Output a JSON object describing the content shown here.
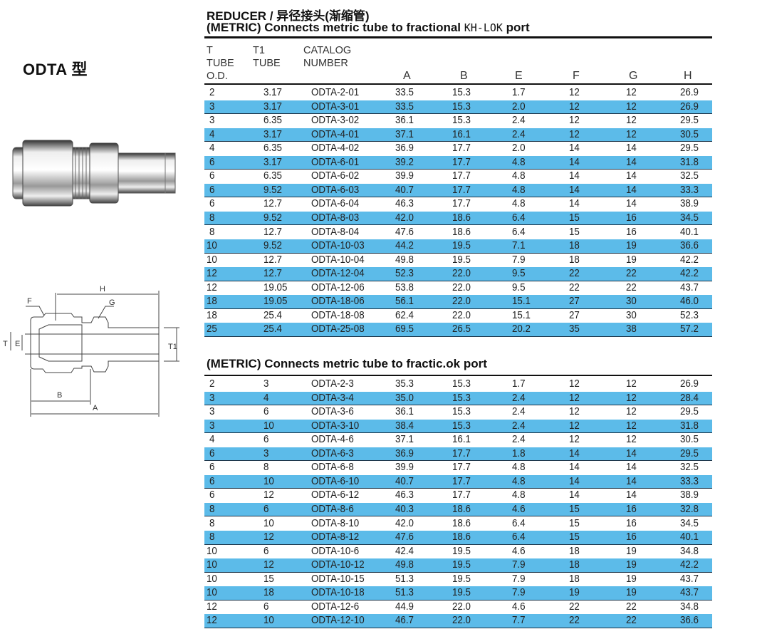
{
  "model_label": "ODTA 型",
  "header": {
    "title_line1": "REDUCER /  异径接头(渐缩管)",
    "title_line2_a": "(METRIC) Connects metric tube to fractional ",
    "title_line2_b": "KH-LOK",
    "title_line2_c": " port",
    "section2_title": "(METRIC) Connects metric tube to fractic.ok port"
  },
  "columns": {
    "t": [
      "T",
      "TUBE",
      "O.D."
    ],
    "t1": [
      "T1",
      "TUBE"
    ],
    "catalog": [
      "CATALOG",
      "NUMBER"
    ],
    "dims": [
      "A",
      "B",
      "E",
      "F",
      "G",
      "H"
    ]
  },
  "diagram_labels": {
    "H": "H",
    "F": "F",
    "G": "G",
    "T": "T",
    "E": "E",
    "T1": "T1",
    "B": "B",
    "A": "A"
  },
  "colors": {
    "row_highlight": "#5cbbe9",
    "rule": "#111111"
  },
  "table1": [
    [
      "2",
      "3.17",
      "ODTA-2-01",
      "33.5",
      "15.3",
      "1.7",
      "12",
      "12",
      "26.9"
    ],
    [
      "3",
      "3.17",
      "ODTA-3-01",
      "33.5",
      "15.3",
      "2.0",
      "12",
      "12",
      "26.9"
    ],
    [
      "3",
      "6.35",
      "ODTA-3-02",
      "36.1",
      "15.3",
      "2.4",
      "12",
      "12",
      "29.5"
    ],
    [
      "4",
      "3.17",
      "ODTA-4-01",
      "37.1",
      "16.1",
      "2.4",
      "12",
      "12",
      "30.5"
    ],
    [
      "4",
      "6.35",
      "ODTA-4-02",
      "36.9",
      "17.7",
      "2.0",
      "14",
      "14",
      "29.5"
    ],
    [
      "6",
      "3.17",
      "ODTA-6-01",
      "39.2",
      "17.7",
      "4.8",
      "14",
      "14",
      "31.8"
    ],
    [
      "6",
      "6.35",
      "ODTA-6-02",
      "39.9",
      "17.7",
      "4.8",
      "14",
      "14",
      "32.5"
    ],
    [
      "6",
      "9.52",
      "ODTA-6-03",
      "40.7",
      "17.7",
      "4.8",
      "14",
      "14",
      "33.3"
    ],
    [
      "6",
      "12.7",
      "ODTA-6-04",
      "46.3",
      "17.7",
      "4.8",
      "14",
      "14",
      "38.9"
    ],
    [
      "8",
      "9.52",
      "ODTA-8-03",
      "42.0",
      "18.6",
      "6.4",
      "15",
      "16",
      "34.5"
    ],
    [
      "8",
      "12.7",
      "ODTA-8-04",
      "47.6",
      "18.6",
      "6.4",
      "15",
      "16",
      "40.1"
    ],
    [
      "10",
      "9.52",
      "ODTA-10-03",
      "44.2",
      "19.5",
      "7.1",
      "18",
      "19",
      "36.6"
    ],
    [
      "10",
      "12.7",
      "ODTA-10-04",
      "49.8",
      "19.5",
      "7.9",
      "18",
      "19",
      "42.2"
    ],
    [
      "12",
      "12.7",
      "ODTA-12-04",
      "52.3",
      "22.0",
      "9.5",
      "22",
      "22",
      "42.2"
    ],
    [
      "12",
      "19.05",
      "ODTA-12-06",
      "53.8",
      "22.0",
      "9.5",
      "22",
      "22",
      "43.7"
    ],
    [
      "18",
      "19.05",
      "ODTA-18-06",
      "56.1",
      "22.0",
      "15.1",
      "27",
      "30",
      "46.0"
    ],
    [
      "18",
      "25.4",
      "ODTA-18-08",
      "62.4",
      "22.0",
      "15.1",
      "27",
      "30",
      "52.3"
    ],
    [
      "25",
      "25.4",
      "ODTA-25-08",
      "69.5",
      "26.5",
      "20.2",
      "35",
      "38",
      "57.2"
    ]
  ],
  "table2": [
    [
      "2",
      "3",
      "ODTA-2-3",
      "35.3",
      "15.3",
      "1.7",
      "12",
      "12",
      "26.9"
    ],
    [
      "3",
      "4",
      "ODTA-3-4",
      "35.0",
      "15.3",
      "2.4",
      "12",
      "12",
      "28.4"
    ],
    [
      "3",
      "6",
      "ODTA-3-6",
      "36.1",
      "15.3",
      "2.4",
      "12",
      "12",
      "29.5"
    ],
    [
      "3",
      "10",
      "ODTA-3-10",
      "38.4",
      "15.3",
      "2.4",
      "12",
      "12",
      "31.8"
    ],
    [
      "4",
      "6",
      "ODTA-4-6",
      "37.1",
      "16.1",
      "2.4",
      "12",
      "12",
      "30.5"
    ],
    [
      "6",
      "3",
      "ODTA-6-3",
      "36.9",
      "17.7",
      "1.8",
      "14",
      "14",
      "29.5"
    ],
    [
      "6",
      "8",
      "ODTA-6-8",
      "39.9",
      "17.7",
      "4.8",
      "14",
      "14",
      "32.5"
    ],
    [
      "6",
      "10",
      "ODTA-6-10",
      "40.7",
      "17.7",
      "4.8",
      "14",
      "14",
      "33.3"
    ],
    [
      "6",
      "12",
      "ODTA-6-12",
      "46.3",
      "17.7",
      "4.8",
      "14",
      "14",
      "38.9"
    ],
    [
      "8",
      "6",
      "ODTA-8-6",
      "40.3",
      "18.6",
      "4.6",
      "15",
      "16",
      "32.8"
    ],
    [
      "8",
      "10",
      "ODTA-8-10",
      "42.0",
      "18.6",
      "6.4",
      "15",
      "16",
      "34.5"
    ],
    [
      "8",
      "12",
      "ODTA-8-12",
      "47.6",
      "18.6",
      "6.4",
      "15",
      "16",
      "40.1"
    ],
    [
      "10",
      "6",
      "ODTA-10-6",
      "42.4",
      "19.5",
      "4.6",
      "18",
      "19",
      "34.8"
    ],
    [
      "10",
      "12",
      "ODTA-10-12",
      "49.8",
      "19.5",
      "7.9",
      "18",
      "19",
      "42.2"
    ],
    [
      "10",
      "15",
      "ODTA-10-15",
      "51.3",
      "19.5",
      "7.9",
      "18",
      "19",
      "43.7"
    ],
    [
      "10",
      "18",
      "ODTA-10-18",
      "51.3",
      "19.5",
      "7.9",
      "19",
      "19",
      "43.7"
    ],
    [
      "12",
      "6",
      "ODTA-12-6",
      "44.9",
      "22.0",
      "4.6",
      "22",
      "22",
      "34.8"
    ],
    [
      "12",
      "10",
      "ODTA-12-10",
      "46.7",
      "22.0",
      "7.7",
      "22",
      "22",
      "36.6"
    ]
  ]
}
